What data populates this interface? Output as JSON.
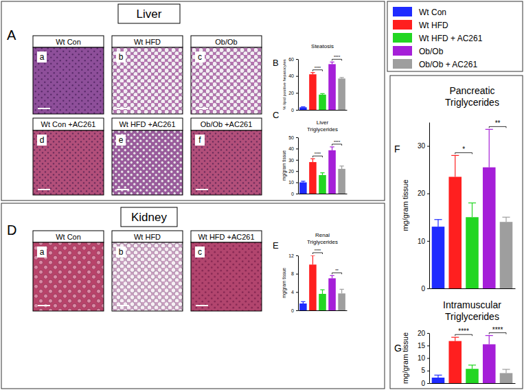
{
  "figure": {
    "section_titles": [
      "Liver",
      "Kidney"
    ],
    "panel_letters": [
      "A",
      "B",
      "C",
      "D",
      "E",
      "F",
      "G"
    ],
    "micrographs": {
      "A": [
        {
          "tag": "a",
          "label": "Wt Con"
        },
        {
          "tag": "b",
          "label": "Wt HFD"
        },
        {
          "tag": "c",
          "label": "Ob/Ob"
        },
        {
          "tag": "d",
          "label": "Wt Con +AC261"
        },
        {
          "tag": "e",
          "label": "Wt HFD +AC261"
        },
        {
          "tag": "f",
          "label": "Ob/Ob +AC261"
        }
      ],
      "D": [
        {
          "tag": "a",
          "label": "Wt Con"
        },
        {
          "tag": "b",
          "label": "Wt HFD"
        },
        {
          "tag": "c",
          "label": "Wt HFD +AC261"
        }
      ]
    },
    "legend": [
      {
        "name": "Wt Con",
        "color": "#1f2bff"
      },
      {
        "name": "Wt HFD",
        "color": "#ff1f1f"
      },
      {
        "name": "Wt HFD + AC261",
        "color": "#22d622"
      },
      {
        "name": "Ob/Ob",
        "color": "#a51fd8"
      },
      {
        "name": "Ob/Ob + AC261",
        "color": "#9e9e9e"
      }
    ]
  },
  "chart_data": [
    {
      "type": "bar",
      "title": "Steatosis",
      "y_label": "% lipid positive hepatocytes",
      "categories": [
        null,
        null,
        null,
        null,
        null
      ],
      "values": [
        3,
        42,
        18,
        54,
        37
      ],
      "errors": [
        0.6,
        2,
        1.2,
        2.5,
        1.2
      ],
      "colors": [
        "#1f2bff",
        "#ff1f1f",
        "#22d622",
        "#a51fd8",
        "#9e9e9e"
      ],
      "ylim": [
        0,
        60
      ],
      "yticks": [
        0,
        20,
        40,
        60
      ],
      "annotations": [
        {
          "text": "****",
          "from": 1,
          "to": 2
        },
        {
          "text": "****",
          "from": 3,
          "to": 4
        }
      ]
    },
    {
      "type": "bar",
      "title": "Liver Triglycerides",
      "y_label": "mg/gram tissue",
      "categories": [
        null,
        null,
        null,
        null,
        null
      ],
      "values": [
        10,
        28,
        16.5,
        38.5,
        22
      ],
      "errors": [
        1,
        3,
        2,
        3,
        2.5
      ],
      "colors": [
        "#1f2bff",
        "#ff1f1f",
        "#22d622",
        "#a51fd8",
        "#9e9e9e"
      ],
      "ylim": [
        0,
        50
      ],
      "yticks": [
        0,
        10,
        20,
        30,
        40,
        50
      ],
      "annotations": [
        {
          "text": "****",
          "from": 1,
          "to": 2
        },
        {
          "text": "****",
          "from": 3,
          "to": 4
        }
      ]
    },
    {
      "type": "bar",
      "title": "Renal Triglycerides",
      "y_label": "mg/gram tissue",
      "categories": [
        null,
        null,
        null,
        null,
        null
      ],
      "values": [
        1.5,
        10,
        3.6,
        7,
        3.7
      ],
      "errors": [
        0.4,
        2,
        0.9,
        0.6,
        0.9
      ],
      "colors": [
        "#1f2bff",
        "#ff1f1f",
        "#22d622",
        "#a51fd8",
        "#9e9e9e"
      ],
      "ylim": [
        0,
        12
      ],
      "yticks": [
        0,
        4,
        8,
        12
      ],
      "annotations": [
        {
          "text": "****",
          "from": 1,
          "to": 2
        },
        {
          "text": "**",
          "from": 3,
          "to": 4
        }
      ]
    },
    {
      "type": "bar",
      "title": "Pancreatic Triglycerides",
      "y_label": "mg/gram tissue",
      "categories": [
        null,
        null,
        null,
        null,
        null
      ],
      "values": [
        13,
        23.5,
        15,
        25.5,
        14
      ],
      "errors": [
        1.5,
        4.5,
        3,
        8,
        1
      ],
      "colors": [
        "#1f2bff",
        "#ff1f1f",
        "#22d622",
        "#a51fd8",
        "#9e9e9e"
      ],
      "ylim": [
        0,
        35
      ],
      "yticks": [
        0,
        10,
        20,
        30
      ],
      "annotations": [
        {
          "text": "*",
          "from": 1,
          "to": 2
        },
        {
          "text": "**",
          "from": 3,
          "to": 4
        }
      ]
    },
    {
      "type": "bar",
      "title": "Intramuscular Triglycerides",
      "y_label": "mg/gram tissue",
      "categories": [
        null,
        null,
        null,
        null,
        null
      ],
      "values": [
        2.2,
        16.8,
        5.7,
        15.5,
        4
      ],
      "errors": [
        1,
        1.5,
        1.5,
        3.5,
        1.5
      ],
      "colors": [
        "#1f2bff",
        "#ff1f1f",
        "#22d622",
        "#a51fd8",
        "#9e9e9e"
      ],
      "ylim": [
        0,
        20
      ],
      "yticks": [
        0,
        5,
        10,
        15,
        20
      ],
      "annotations": [
        {
          "text": "****",
          "from": 1,
          "to": 2
        },
        {
          "text": "****",
          "from": 3,
          "to": 4
        }
      ]
    }
  ]
}
